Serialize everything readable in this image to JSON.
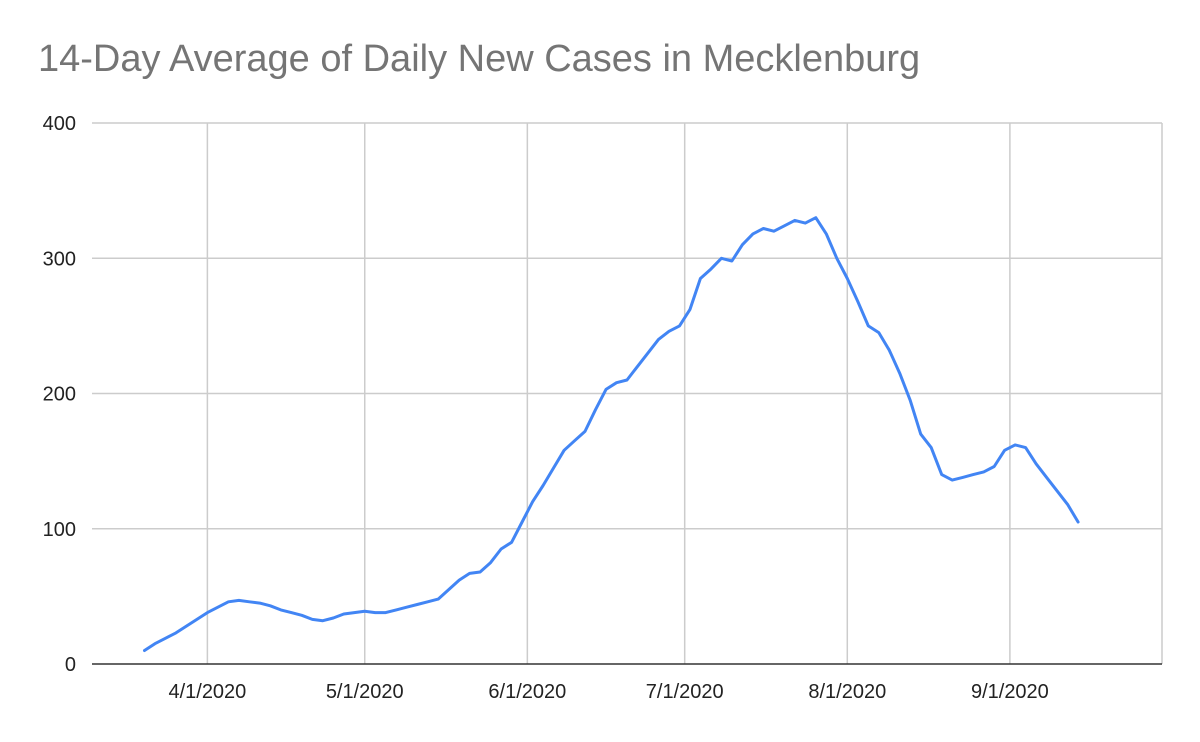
{
  "chart_data": {
    "type": "line",
    "title": "14-Day Average of Daily New Cases in Mecklenburg",
    "xlabel": "",
    "ylabel": "",
    "ylim": [
      0,
      400
    ],
    "yticks": [
      0,
      100,
      200,
      300,
      400
    ],
    "xticks": [
      {
        "label": "4/1/2020",
        "x": "2020-04-01"
      },
      {
        "label": "5/1/2020",
        "x": "2020-05-01"
      },
      {
        "label": "6/1/2020",
        "x": "2020-06-01"
      },
      {
        "label": "7/1/2020",
        "x": "2020-07-01"
      },
      {
        "label": "8/1/2020",
        "x": "2020-08-01"
      },
      {
        "label": "9/1/2020",
        "x": "2020-09-01"
      }
    ],
    "grid": true,
    "legend": "none",
    "color": "#4285f4",
    "series": [
      {
        "name": "",
        "x": [
          "2020-03-20",
          "2020-03-22",
          "2020-03-24",
          "2020-03-26",
          "2020-03-28",
          "2020-03-30",
          "2020-04-01",
          "2020-04-03",
          "2020-04-05",
          "2020-04-07",
          "2020-04-09",
          "2020-04-11",
          "2020-04-13",
          "2020-04-15",
          "2020-04-17",
          "2020-04-19",
          "2020-04-21",
          "2020-04-23",
          "2020-04-25",
          "2020-04-27",
          "2020-04-29",
          "2020-05-01",
          "2020-05-03",
          "2020-05-05",
          "2020-05-07",
          "2020-05-09",
          "2020-05-11",
          "2020-05-13",
          "2020-05-15",
          "2020-05-17",
          "2020-05-19",
          "2020-05-21",
          "2020-05-23",
          "2020-05-25",
          "2020-05-27",
          "2020-05-29",
          "2020-05-31",
          "2020-06-02",
          "2020-06-04",
          "2020-06-06",
          "2020-06-08",
          "2020-06-10",
          "2020-06-12",
          "2020-06-14",
          "2020-06-16",
          "2020-06-18",
          "2020-06-20",
          "2020-06-22",
          "2020-06-24",
          "2020-06-26",
          "2020-06-28",
          "2020-06-30",
          "2020-07-02",
          "2020-07-04",
          "2020-07-06",
          "2020-07-08",
          "2020-07-10",
          "2020-07-12",
          "2020-07-14",
          "2020-07-16",
          "2020-07-18",
          "2020-07-20",
          "2020-07-22",
          "2020-07-24",
          "2020-07-26",
          "2020-07-28",
          "2020-07-30",
          "2020-08-01",
          "2020-08-03",
          "2020-08-05",
          "2020-08-07",
          "2020-08-09",
          "2020-08-11",
          "2020-08-13",
          "2020-08-15",
          "2020-08-17",
          "2020-08-19",
          "2020-08-21",
          "2020-08-23",
          "2020-08-25",
          "2020-08-27",
          "2020-08-29",
          "2020-08-31",
          "2020-09-02",
          "2020-09-04",
          "2020-09-06",
          "2020-09-08",
          "2020-09-10",
          "2020-09-12",
          "2020-09-14"
        ],
        "values": [
          10,
          15,
          19,
          23,
          28,
          33,
          38,
          42,
          46,
          47,
          46,
          45,
          43,
          40,
          38,
          36,
          33,
          32,
          34,
          37,
          38,
          39,
          38,
          38,
          40,
          42,
          44,
          46,
          48,
          55,
          62,
          67,
          68,
          75,
          85,
          90,
          105,
          120,
          132,
          145,
          158,
          165,
          172,
          188,
          203,
          208,
          210,
          220,
          230,
          240,
          246,
          250,
          262,
          285,
          292,
          300,
          298,
          310,
          318,
          322,
          320,
          324,
          328,
          326,
          330,
          318,
          300,
          285,
          268,
          250,
          245,
          232,
          215,
          195,
          170,
          160,
          140,
          136,
          138,
          140,
          142,
          146,
          158,
          162,
          160,
          148,
          138,
          128,
          118,
          105
        ]
      }
    ]
  }
}
